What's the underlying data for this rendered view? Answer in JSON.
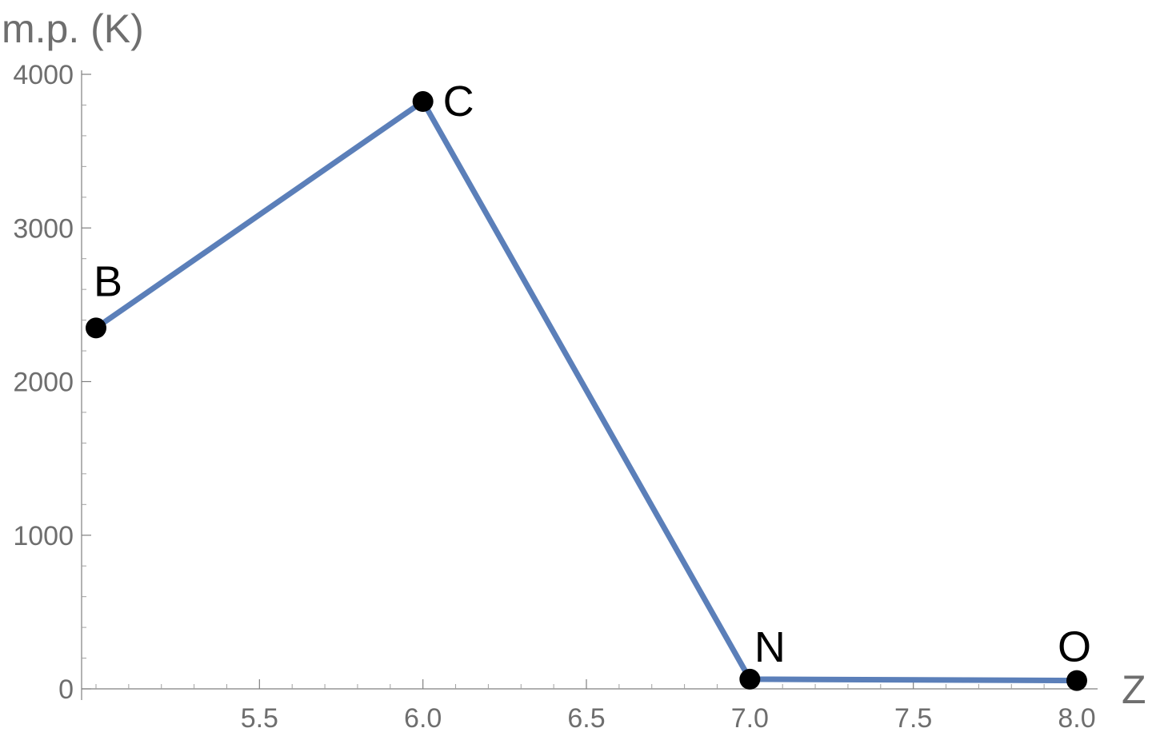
{
  "chart_data": {
    "type": "line",
    "title": "",
    "xlabel": "Z",
    "ylabel": "m.p. (K)",
    "xlim": [
      5.0,
      8.05
    ],
    "ylim": [
      0,
      4000
    ],
    "x_ticks": [
      5.5,
      6.0,
      6.5,
      7.0,
      7.5,
      8.0
    ],
    "x_tick_labels": [
      "5.5",
      "6.0",
      "6.5",
      "7.0",
      "7.5",
      "8.0"
    ],
    "y_ticks": [
      0,
      1000,
      2000,
      3000,
      4000
    ],
    "y_tick_labels": [
      "0",
      "1000",
      "2000",
      "3000",
      "4000"
    ],
    "grid": false,
    "legend": "none",
    "series": [
      {
        "color": "#5b7fb9",
        "points": [
          {
            "x": 5,
            "y": 2349,
            "label": "B"
          },
          {
            "x": 6,
            "y": 3823,
            "label": "C"
          },
          {
            "x": 7,
            "y": 63,
            "label": "N"
          },
          {
            "x": 8,
            "y": 54,
            "label": "O"
          }
        ]
      }
    ]
  }
}
